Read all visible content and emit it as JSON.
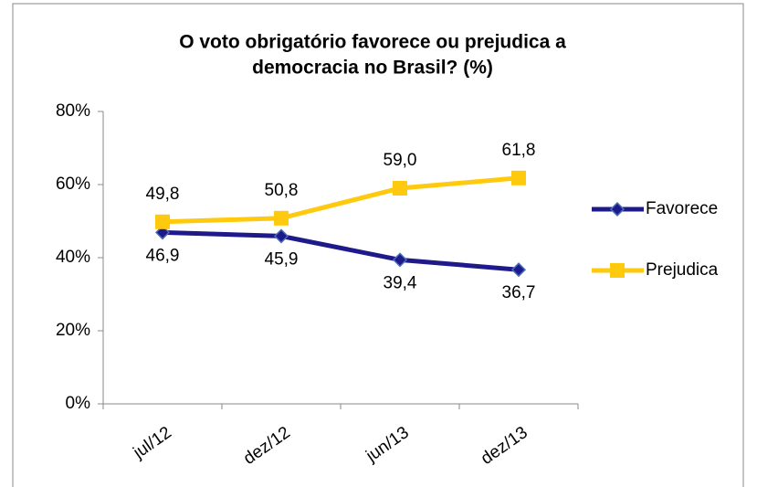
{
  "chart_data": {
    "type": "line",
    "title": [
      "O voto obrigatório favorece ou prejudica a",
      "democracia no Brasil? (%)"
    ],
    "categories": [
      "jul/12",
      "dez/12",
      "jun/13",
      "dez/13"
    ],
    "series": [
      {
        "name": "Favorece",
        "color": "#1f1a8c",
        "marker": "diamond",
        "values": [
          46.9,
          45.9,
          39.4,
          36.7
        ],
        "value_labels": [
          "46,9",
          "45,9",
          "39,4",
          "36,7"
        ]
      },
      {
        "name": "Prejudica",
        "color": "#ffc90e",
        "marker": "square",
        "values": [
          49.8,
          50.8,
          59.0,
          61.8
        ],
        "value_labels": [
          "49,8",
          "50,8",
          "59,0",
          "61,8"
        ]
      }
    ],
    "ylim": [
      0,
      80
    ],
    "yticks": [
      {
        "value": 0,
        "label": "0%"
      },
      {
        "value": 20,
        "label": "20%"
      },
      {
        "value": 40,
        "label": "40%"
      },
      {
        "value": 60,
        "label": "60%"
      },
      {
        "value": 80,
        "label": "80%"
      }
    ],
    "grid": false,
    "legend": "right"
  }
}
